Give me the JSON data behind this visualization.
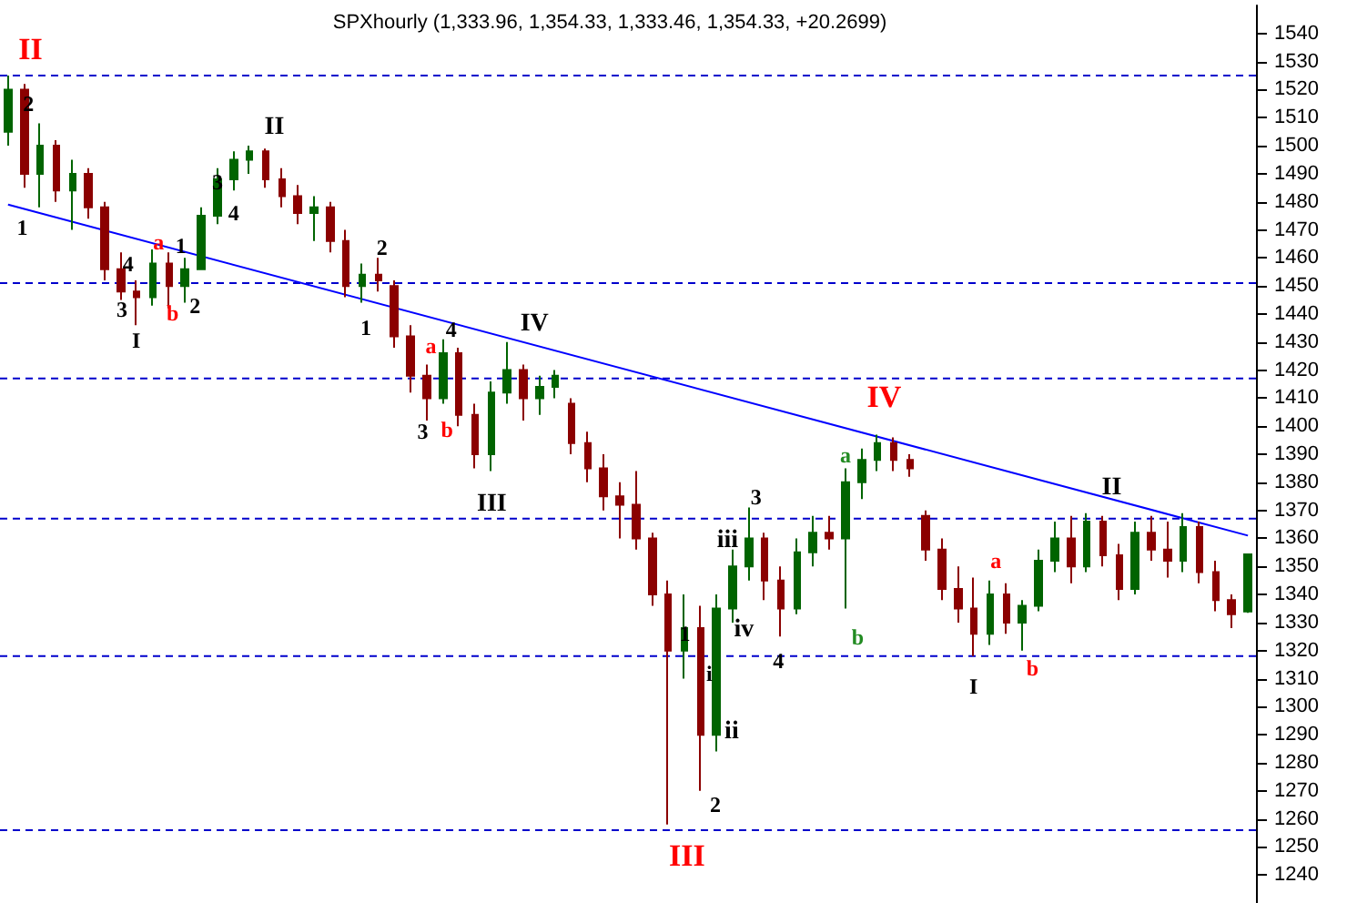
{
  "chart_data": {
    "type": "candlestick",
    "title": "SPXhourly (1,333.96, 1,354.33, 1,333.46, 1,354.33, +20.2699)",
    "categories": [
      null,
      null,
      null,
      null,
      null,
      null,
      null,
      null,
      null,
      null,
      null,
      null,
      null,
      null,
      null,
      null,
      null,
      null,
      null,
      null,
      null,
      null,
      null,
      null,
      null,
      null,
      null,
      null,
      null,
      null,
      null,
      null,
      null,
      null,
      null,
      null,
      null,
      null,
      null,
      null,
      null,
      null,
      null,
      null,
      null,
      null,
      null,
      null,
      null,
      null,
      null,
      null,
      null,
      null,
      null,
      null,
      null,
      null,
      null,
      null,
      null,
      null,
      null,
      null,
      null,
      null,
      null,
      null,
      null,
      null,
      null,
      null,
      null,
      null,
      null,
      null,
      null,
      null
    ],
    "ohlc": [
      [
        1505,
        1525,
        1500,
        1520
      ],
      [
        1520,
        1522,
        1485,
        1490
      ],
      [
        1490,
        1508,
        1478,
        1500
      ],
      [
        1500,
        1502,
        1480,
        1484
      ],
      [
        1484,
        1495,
        1470,
        1490
      ],
      [
        1490,
        1492,
        1474,
        1478
      ],
      [
        1478,
        1480,
        1452,
        1456
      ],
      [
        1456,
        1462,
        1445,
        1448
      ],
      [
        1448,
        1452,
        1436,
        1446
      ],
      [
        1446,
        1463,
        1443,
        1458
      ],
      [
        1458,
        1462,
        1442,
        1450
      ],
      [
        1450,
        1460,
        1444,
        1456
      ],
      [
        1456,
        1478,
        1456,
        1475
      ],
      [
        1475,
        1492,
        1472,
        1488
      ],
      [
        1488,
        1498,
        1484,
        1495
      ],
      [
        1495,
        1500,
        1490,
        1498
      ],
      [
        1498,
        1499,
        1485,
        1488
      ],
      [
        1488,
        1492,
        1478,
        1482
      ],
      [
        1482,
        1486,
        1472,
        1476
      ],
      [
        1476,
        1482,
        1466,
        1478
      ],
      [
        1478,
        1480,
        1462,
        1466
      ],
      [
        1466,
        1470,
        1446,
        1450
      ],
      [
        1450,
        1458,
        1444,
        1454
      ],
      [
        1454,
        1460,
        1448,
        1452
      ],
      [
        1450,
        1452,
        1428,
        1432
      ],
      [
        1432,
        1436,
        1412,
        1418
      ],
      [
        1418,
        1422,
        1402,
        1410
      ],
      [
        1410,
        1431,
        1408,
        1426
      ],
      [
        1426,
        1428,
        1400,
        1404
      ],
      [
        1404,
        1408,
        1385,
        1390
      ],
      [
        1390,
        1416,
        1384,
        1412
      ],
      [
        1412,
        1430,
        1408,
        1420
      ],
      [
        1420,
        1422,
        1402,
        1410
      ],
      [
        1410,
        1418,
        1404,
        1414
      ],
      [
        1414,
        1420,
        1410,
        1418
      ],
      [
        1408,
        1410,
        1390,
        1394
      ],
      [
        1394,
        1398,
        1380,
        1385
      ],
      [
        1385,
        1390,
        1370,
        1375
      ],
      [
        1375,
        1380,
        1360,
        1372
      ],
      [
        1372,
        1384,
        1356,
        1360
      ],
      [
        1360,
        1362,
        1336,
        1340
      ],
      [
        1340,
        1345,
        1258,
        1320
      ],
      [
        1320,
        1340,
        1310,
        1328
      ],
      [
        1328,
        1336,
        1270,
        1290
      ],
      [
        1290,
        1340,
        1284,
        1335
      ],
      [
        1335,
        1356,
        1330,
        1350
      ],
      [
        1350,
        1371,
        1345,
        1360
      ],
      [
        1360,
        1362,
        1338,
        1345
      ],
      [
        1345,
        1350,
        1325,
        1335
      ],
      [
        1335,
        1360,
        1333,
        1355
      ],
      [
        1355,
        1368,
        1350,
        1362
      ],
      [
        1362,
        1368,
        1356,
        1360
      ],
      [
        1360,
        1385,
        1335,
        1380
      ],
      [
        1380,
        1392,
        1374,
        1388
      ],
      [
        1388,
        1397,
        1384,
        1394
      ],
      [
        1394,
        1396,
        1384,
        1388
      ],
      [
        1388,
        1390,
        1382,
        1385
      ],
      [
        1368,
        1370,
        1352,
        1356
      ],
      [
        1356,
        1360,
        1338,
        1342
      ],
      [
        1342,
        1350,
        1330,
        1335
      ],
      [
        1335,
        1346,
        1318,
        1326
      ],
      [
        1326,
        1345,
        1322,
        1340
      ],
      [
        1340,
        1344,
        1326,
        1330
      ],
      [
        1330,
        1338,
        1320,
        1336
      ],
      [
        1336,
        1356,
        1334,
        1352
      ],
      [
        1352,
        1366,
        1348,
        1360
      ],
      [
        1360,
        1368,
        1344,
        1350
      ],
      [
        1350,
        1369,
        1348,
        1366
      ],
      [
        1366,
        1368,
        1350,
        1354
      ],
      [
        1354,
        1358,
        1338,
        1342
      ],
      [
        1342,
        1366,
        1340,
        1362
      ],
      [
        1362,
        1368,
        1352,
        1356
      ],
      [
        1356,
        1366,
        1346,
        1352
      ],
      [
        1352,
        1369,
        1348,
        1364
      ],
      [
        1364,
        1366,
        1344,
        1348
      ],
      [
        1348,
        1352,
        1334,
        1338
      ],
      [
        1338,
        1340,
        1328,
        1333
      ],
      [
        1333.96,
        1354.33,
        1333.46,
        1354.33
      ]
    ],
    "colors": [
      "#006400",
      "#8b0000",
      "#006400",
      "#8b0000",
      "#006400",
      "#8b0000",
      "#8b0000",
      "#8b0000",
      "#8b0000",
      "#006400",
      "#8b0000",
      "#006400",
      "#006400",
      "#006400",
      "#006400",
      "#006400",
      "#8b0000",
      "#8b0000",
      "#8b0000",
      "#006400",
      "#8b0000",
      "#8b0000",
      "#006400",
      "#8b0000",
      "#8b0000",
      "#8b0000",
      "#8b0000",
      "#006400",
      "#8b0000",
      "#8b0000",
      "#006400",
      "#006400",
      "#8b0000",
      "#006400",
      "#006400",
      "#8b0000",
      "#8b0000",
      "#8b0000",
      "#8b0000",
      "#8b0000",
      "#8b0000",
      "#8b0000",
      "#006400",
      "#8b0000",
      "#006400",
      "#006400",
      "#006400",
      "#8b0000",
      "#8b0000",
      "#006400",
      "#006400",
      "#8b0000",
      "#006400",
      "#006400",
      "#006400",
      "#8b0000",
      "#8b0000",
      "#8b0000",
      "#8b0000",
      "#8b0000",
      "#8b0000",
      "#006400",
      "#8b0000",
      "#006400",
      "#006400",
      "#006400",
      "#8b0000",
      "#006400",
      "#8b0000",
      "#8b0000",
      "#006400",
      "#8b0000",
      "#8b0000",
      "#006400",
      "#8b0000",
      "#8b0000",
      "#8b0000",
      "#006400"
    ],
    "ylim": [
      1230,
      1550
    ],
    "yticks": [
      1240,
      1250,
      1260,
      1270,
      1280,
      1290,
      1300,
      1310,
      1320,
      1330,
      1340,
      1350,
      1360,
      1370,
      1380,
      1390,
      1400,
      1410,
      1420,
      1430,
      1440,
      1450,
      1460,
      1470,
      1480,
      1490,
      1500,
      1510,
      1520,
      1530,
      1540
    ],
    "tick_labels": "y",
    "series": [
      {
        "type": "line",
        "color": "#0000ff",
        "values": [
          1479,
          null,
          null,
          null,
          null,
          null,
          null,
          null,
          null,
          null,
          null,
          null,
          null,
          null,
          null,
          null,
          null,
          null,
          null,
          null,
          null,
          null,
          null,
          null,
          null,
          null,
          null,
          null,
          null,
          null,
          null,
          null,
          null,
          null,
          null,
          null,
          null,
          null,
          null,
          null,
          null,
          null,
          null,
          null,
          null,
          null,
          null,
          null,
          null,
          null,
          null,
          null,
          null,
          null,
          null,
          null,
          null,
          null,
          null,
          null,
          null,
          null,
          null,
          null,
          null,
          null,
          null,
          null,
          null,
          null,
          null,
          null,
          null,
          null,
          null,
          null,
          null,
          1361
        ]
      }
    ],
    "ref_lines": [
      {
        "axis": "y",
        "value": 1525,
        "color": "#0000cc",
        "line_style": "dashed"
      },
      {
        "axis": "y",
        "value": 1451,
        "color": "#0000cc",
        "line_style": "dashed"
      },
      {
        "axis": "y",
        "value": 1417,
        "color": "#0000cc",
        "line_style": "dashed"
      },
      {
        "axis": "y",
        "value": 1367,
        "color": "#0000cc",
        "line_style": "dashed"
      },
      {
        "axis": "y",
        "value": 1318,
        "color": "#0000cc",
        "line_style": "dashed"
      },
      {
        "axis": "y",
        "value": 1256,
        "color": "#0000cc",
        "line_style": "dashed"
      }
    ],
    "annotations": [
      "II",
      "2",
      "1",
      "II",
      "3",
      "4",
      "a",
      "1",
      "4",
      "3",
      "b",
      "2",
      "I",
      "2",
      "1",
      "4",
      "a",
      "IV",
      "3",
      "b",
      "III",
      "IV",
      "a",
      "3",
      "iii",
      "1",
      "i",
      "iv",
      "4",
      "ii",
      "2",
      "III",
      "b",
      "II",
      "a",
      "I",
      "b"
    ]
  }
}
